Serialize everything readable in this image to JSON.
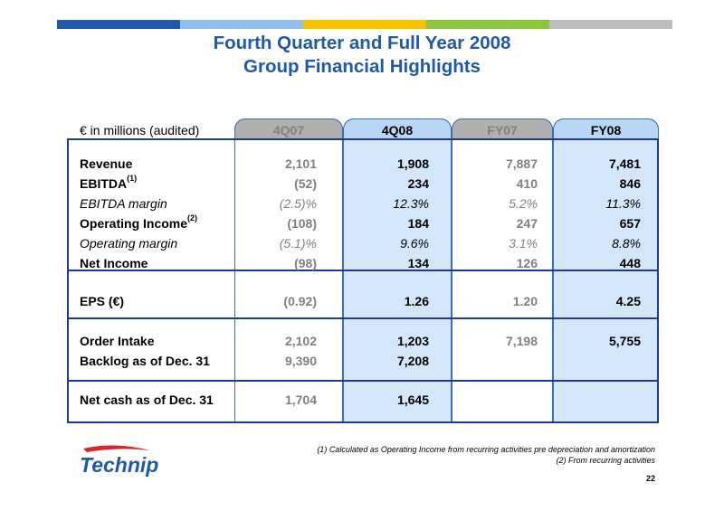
{
  "header": {
    "color_bar": [
      "#1f5aa6",
      "#8fc0ee",
      "#f4c200",
      "#8bc43f",
      "#bdbdbd"
    ],
    "title_line1": "Fourth Quarter and Full Year 2008",
    "title_line2": "Group Financial Highlights"
  },
  "table": {
    "unit_label": "€ in millions (audited)",
    "columns": [
      "4Q07",
      "4Q08",
      "FY07",
      "FY08"
    ],
    "rows": [
      {
        "label": "Revenue",
        "sup": "",
        "style": "bold",
        "values": [
          "2,101",
          "1,908",
          "7,887",
          "7,481"
        ]
      },
      {
        "label": "EBITDA",
        "sup": "(1)",
        "style": "bold",
        "values": [
          "(52)",
          "234",
          "410",
          "846"
        ]
      },
      {
        "label": "EBITDA margin",
        "sup": "",
        "style": "italic",
        "values": [
          "(2.5)%",
          "12.3%",
          "5.2%",
          "11.3%"
        ]
      },
      {
        "label": "Operating Income",
        "sup": "(2)",
        "style": "bold",
        "values": [
          "(108)",
          "184",
          "247",
          "657"
        ]
      },
      {
        "label": "Operating margin",
        "sup": "",
        "style": "italic",
        "values": [
          "(5.1)%",
          "9.6%",
          "3.1%",
          "8.8%"
        ]
      },
      {
        "label": "Net Income",
        "sup": "",
        "style": "bold",
        "values": [
          "(98)",
          "134",
          "126",
          "448"
        ]
      },
      {
        "label": "EPS (€)",
        "sup": "",
        "style": "bold",
        "values": [
          "(0.92)",
          "1.26",
          "1.20",
          "4.25"
        ]
      },
      {
        "label": "Order Intake",
        "sup": "",
        "style": "bold",
        "values": [
          "2,102",
          "1,203",
          "7,198",
          "5,755"
        ]
      },
      {
        "label": "Backlog as of Dec. 31",
        "sup": "",
        "style": "bold",
        "values": [
          "9,390",
          "7,208",
          "",
          ""
        ]
      },
      {
        "label": "Net cash as of Dec. 31",
        "sup": "",
        "style": "bold",
        "values": [
          "1,704",
          "1,645",
          "",
          ""
        ]
      }
    ]
  },
  "footnotes": {
    "note1": "(1) Calculated as Operating Income from recurring activities pre depreciation and amortization",
    "note2": "(2) From recurring activities"
  },
  "logo": {
    "text": "Technip"
  },
  "page_number": "22"
}
